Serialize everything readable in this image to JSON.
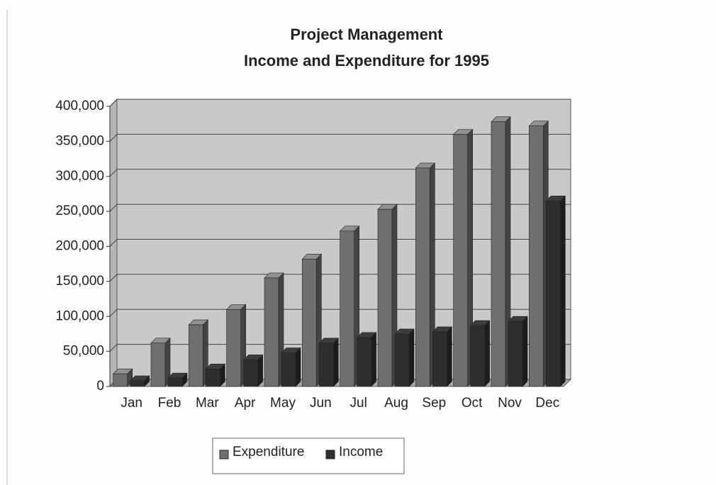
{
  "chart_data": {
    "type": "bar",
    "title": "Project Management",
    "subtitle": "Income and Expenditure for 1995",
    "categories": [
      "Jan",
      "Feb",
      "Mar",
      "Apr",
      "May",
      "Jun",
      "Jul",
      "Aug",
      "Sep",
      "Oct",
      "Nov",
      "Dec"
    ],
    "series": [
      {
        "name": "Expenditure",
        "color": "#6f6f6f",
        "values": [
          18000,
          62000,
          88000,
          110000,
          155000,
          182000,
          222000,
          253000,
          312000,
          360000,
          378000,
          372000
        ]
      },
      {
        "name": "Income",
        "color": "#2e2e2e",
        "values": [
          8000,
          12000,
          25000,
          38000,
          48000,
          62000,
          70000,
          75000,
          78000,
          87000,
          93000,
          265000
        ]
      }
    ],
    "ylim": [
      0,
      400000
    ],
    "yticks": [
      0,
      {
        "value": 50000,
        "label": "50,000"
      },
      {
        "value": 100000,
        "label": "100,000"
      },
      {
        "value": 150000,
        "label": "150,000"
      },
      {
        "value": 200000,
        "label": "200,000"
      },
      {
        "value": 250000,
        "label": "250,000"
      },
      {
        "value": 300000,
        "label": "300,000"
      },
      {
        "value": 350000,
        "label": "350,000"
      },
      {
        "value": 400000,
        "label": "400,000"
      }
    ],
    "grid": true
  }
}
